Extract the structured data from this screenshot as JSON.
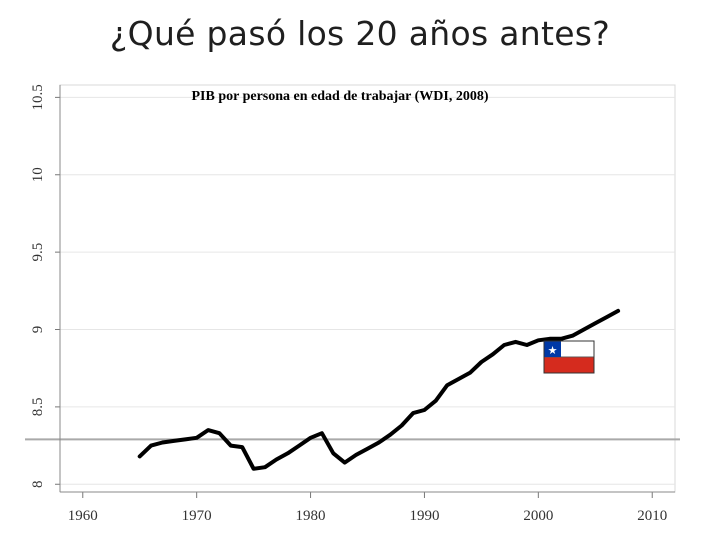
{
  "slide": {
    "title": "¿Qué pasó los 20 años antes?"
  },
  "chart_data": {
    "type": "line",
    "title": "PIB por persona en edad de trabajar (WDI, 2008)",
    "xlabel": "",
    "ylabel": "",
    "xlim": [
      1958,
      2012
    ],
    "ylim": [
      7.95,
      10.58
    ],
    "x_ticks": [
      "1960",
      "1970",
      "1980",
      "1990",
      "2000",
      "2010"
    ],
    "y_ticks": [
      "8",
      "8.5",
      "9",
      "9.5",
      "10",
      "10.5"
    ],
    "grid": true,
    "reference_line": 8.29,
    "flag_icon": "chile-flag-icon",
    "series": [
      {
        "x": [
          1965,
          1966,
          1967,
          1968,
          1969,
          1970,
          1971,
          1972,
          1973,
          1974,
          1975,
          1976,
          1977,
          1978,
          1979,
          1980,
          1981,
          1982,
          1983,
          1984,
          1985,
          1986,
          1987,
          1988,
          1989,
          1990,
          1991,
          1992,
          1993,
          1994,
          1995,
          1996,
          1997,
          1998,
          1999,
          2000,
          2001,
          2002,
          2003,
          2004,
          2005,
          2006,
          2007
        ],
        "y": [
          8.18,
          8.25,
          8.27,
          8.28,
          8.29,
          8.3,
          8.35,
          8.33,
          8.25,
          8.24,
          8.1,
          8.11,
          8.16,
          8.2,
          8.25,
          8.3,
          8.33,
          8.2,
          8.14,
          8.19,
          8.23,
          8.27,
          8.32,
          8.38,
          8.46,
          8.48,
          8.54,
          8.64,
          8.68,
          8.72,
          8.79,
          8.84,
          8.9,
          8.92,
          8.9,
          8.93,
          8.94,
          8.94,
          8.96,
          9.0,
          9.04,
          9.08,
          9.12
        ]
      }
    ]
  }
}
